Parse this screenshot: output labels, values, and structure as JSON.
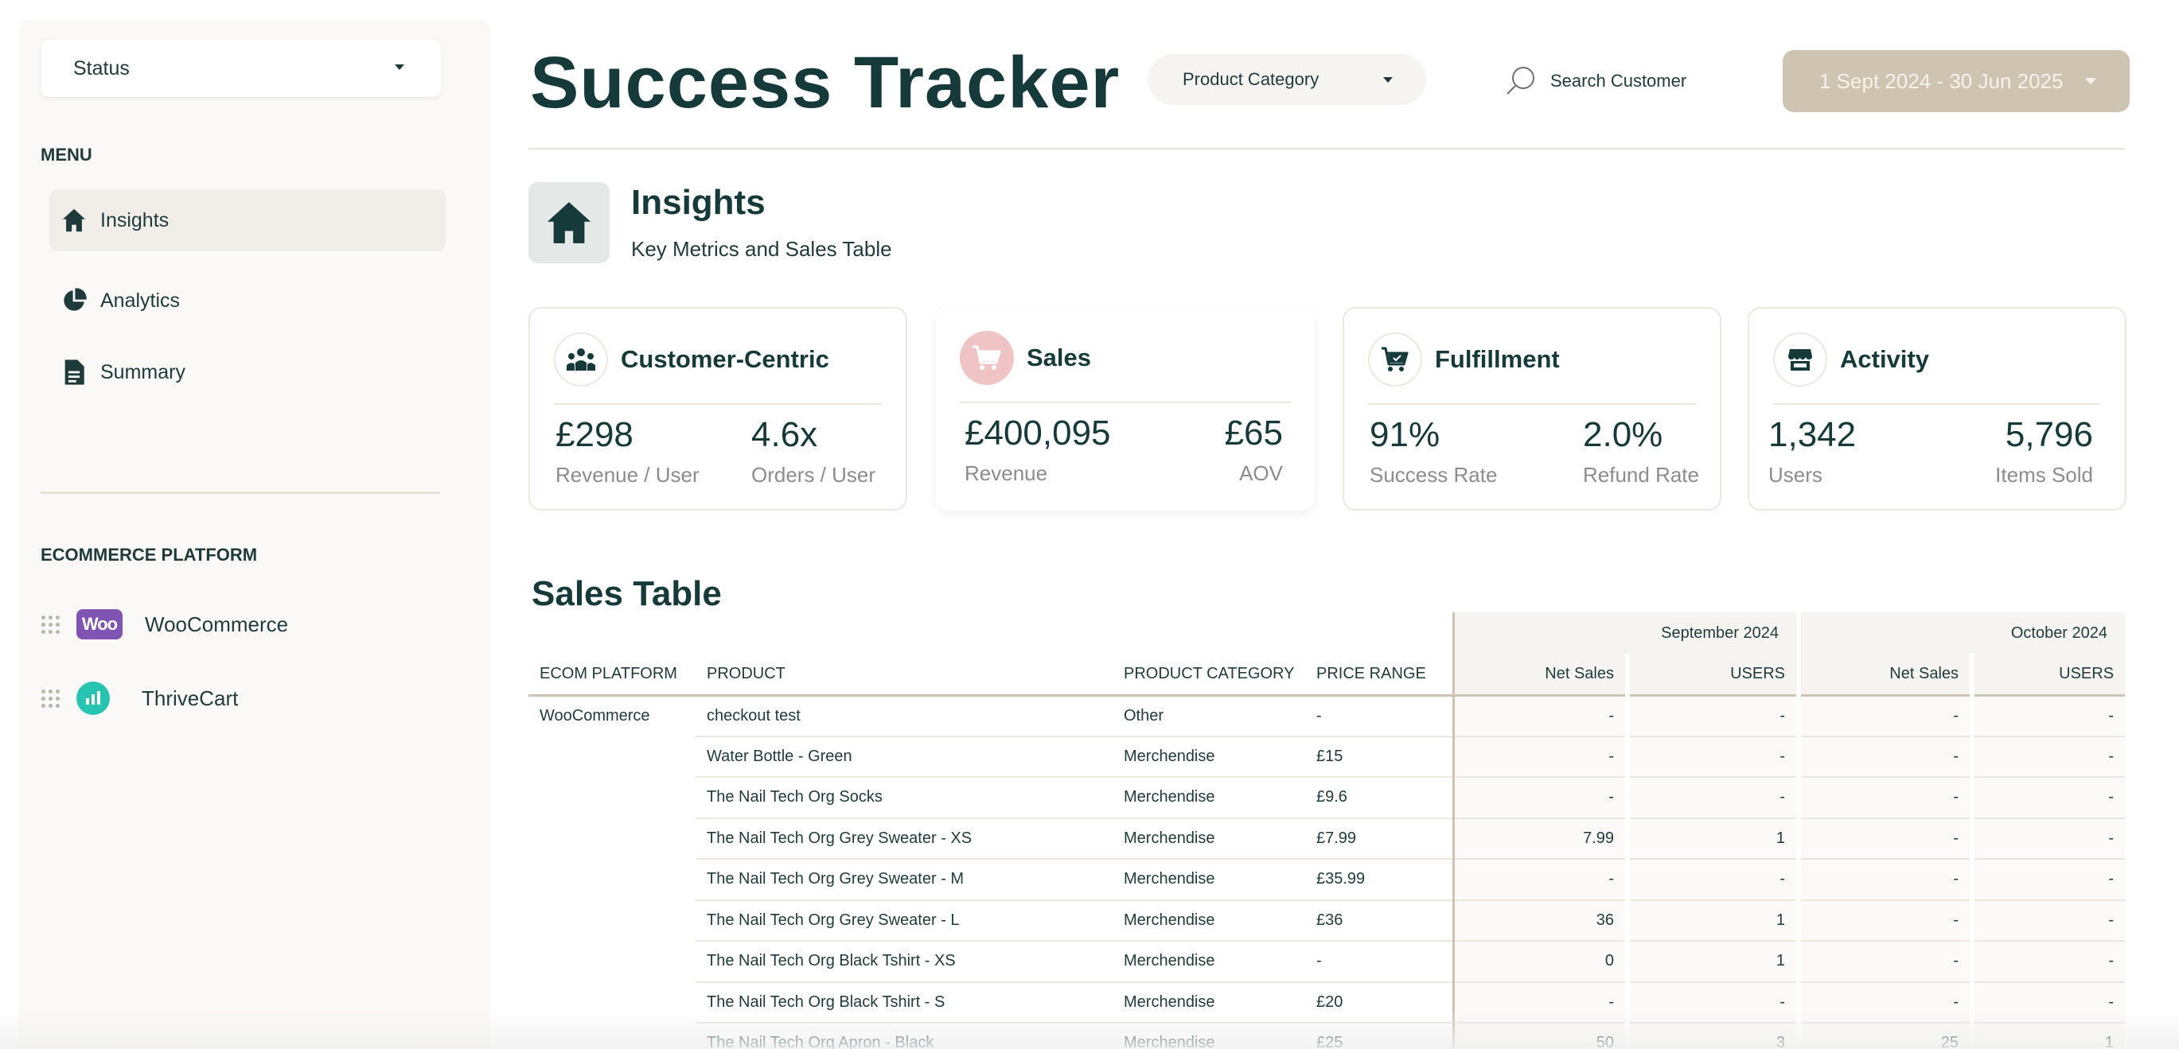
{
  "sidebar": {
    "status_label": "Status",
    "menu_heading": "MENU",
    "items": [
      {
        "label": "Insights",
        "icon": "home-icon"
      },
      {
        "label": "Analytics",
        "icon": "pie-chart-icon"
      },
      {
        "label": "Summary",
        "icon": "document-icon"
      }
    ],
    "platform_heading": "ECOMMERCE PLATFORM",
    "platforms": [
      {
        "label": "WooCommerce",
        "logo_text": "Woo"
      },
      {
        "label": "ThriveCart"
      }
    ]
  },
  "header": {
    "title": "Success Tracker",
    "category_label": "Product Category",
    "search_label": "Search Customer",
    "date_range": "1 Sept 2024 - 30 Jun 2025"
  },
  "insights": {
    "title": "Insights",
    "subtitle": "Key Metrics and Sales Table"
  },
  "cards": [
    {
      "title": "Customer-Centric",
      "icon": "users-icon",
      "metrics": [
        {
          "value": "£298",
          "label": "Revenue / User"
        },
        {
          "value": "4.6x",
          "label": "Orders / User"
        }
      ]
    },
    {
      "title": "Sales",
      "icon": "cart-icon",
      "metrics": [
        {
          "value": "£400,095",
          "label": "Revenue"
        },
        {
          "value": "£65",
          "label": "AOV"
        }
      ]
    },
    {
      "title": "Fulfillment",
      "icon": "fulfillment-cart-icon",
      "metrics": [
        {
          "value": "91%",
          "label": "Success Rate"
        },
        {
          "value": "2.0%",
          "label": "Refund Rate"
        }
      ]
    },
    {
      "title": "Activity",
      "icon": "store-icon",
      "metrics": [
        {
          "value": "1,342",
          "label": "Users"
        },
        {
          "value": "5,796",
          "label": "Items Sold"
        }
      ]
    }
  ],
  "sales_table": {
    "title": "Sales Table",
    "months": [
      "September 2024",
      "October 2024"
    ],
    "columns": [
      "ECOM PLATFORM",
      "PRODUCT",
      "PRODUCT CATEGORY",
      "PRICE RANGE",
      "Net Sales",
      "USERS",
      "Net Sales",
      "USERS"
    ],
    "platform": "WooCommerce",
    "rows": [
      [
        "checkout test",
        "Other",
        "-",
        "-",
        "-",
        "-",
        "-"
      ],
      [
        "Water Bottle - Green",
        "Merchendise",
        "£15",
        "-",
        "-",
        "-",
        "-"
      ],
      [
        "The Nail Tech Org Socks",
        "Merchendise",
        "£9.6",
        "-",
        "-",
        "-",
        "-"
      ],
      [
        "The Nail Tech Org Grey Sweater - XS",
        "Merchendise",
        "£7.99",
        "7.99",
        "1",
        "-",
        "-"
      ],
      [
        "The Nail Tech Org Grey Sweater - M",
        "Merchendise",
        "£35.99",
        "-",
        "-",
        "-",
        "-"
      ],
      [
        "The Nail Tech Org Grey Sweater - L",
        "Merchendise",
        "£36",
        "36",
        "1",
        "-",
        "-"
      ],
      [
        "The Nail Tech Org Black Tshirt - XS",
        "Merchendise",
        "-",
        "0",
        "1",
        "-",
        "-"
      ],
      [
        "The Nail Tech Org Black Tshirt - S",
        "Merchendise",
        "£20",
        "-",
        "-",
        "-",
        "-"
      ],
      [
        "The Nail Tech Org Apron - Black",
        "Merchendise",
        "£25",
        "50",
        "3",
        "25",
        "1"
      ]
    ]
  }
}
